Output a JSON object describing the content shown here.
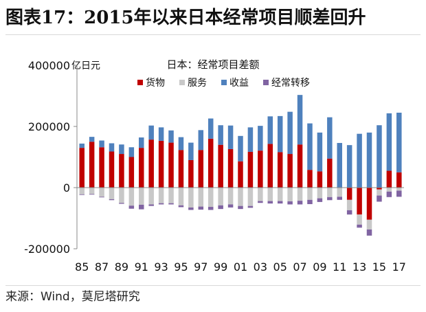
{
  "figure": {
    "title": "图表17：2015年以来日本经常项目顺差回升",
    "source": "来源：Wind，莫尼塔研究"
  },
  "chart_data": {
    "type": "bar",
    "stacked": true,
    "title": "日本：经常项目差额",
    "ylabel": "亿日元",
    "xlabel": "",
    "ylim": [
      -200000,
      400000
    ],
    "yticks": [
      400000,
      200000,
      0,
      -200000
    ],
    "ytick_labels": [
      "400000",
      "200000",
      "0",
      "-200000"
    ],
    "grid": false,
    "legend_position": "top",
    "categories": [
      "85",
      "86",
      "87",
      "88",
      "89",
      "90",
      "91",
      "92",
      "93",
      "94",
      "95",
      "96",
      "97",
      "98",
      "99",
      "00",
      "01",
      "02",
      "03",
      "04",
      "05",
      "06",
      "07",
      "08",
      "09",
      "10",
      "11",
      "12",
      "13",
      "14",
      "15",
      "16",
      "17"
    ],
    "xtick_labels": [
      "85",
      "",
      "87",
      "",
      "89",
      "",
      "91",
      "",
      "93",
      "",
      "95",
      "",
      "97",
      "",
      "99",
      "",
      "01",
      "",
      "03",
      "",
      "05",
      "",
      "07",
      "",
      "09",
      "",
      "11",
      "",
      "13",
      "",
      "15",
      "",
      "17"
    ],
    "series": [
      {
        "name": "货物",
        "color": "#c00000",
        "values": [
          130000,
          150000,
          132000,
          118000,
          110000,
          100000,
          130000,
          157000,
          153000,
          147000,
          123000,
          90000,
          123000,
          160000,
          140000,
          126000,
          86000,
          117000,
          121000,
          143000,
          116000,
          110000,
          141000,
          58000,
          53000,
          95000,
          0,
          -40000,
          -88000,
          -105000,
          -6000,
          55000,
          50000
        ]
      },
      {
        "name": "服务",
        "color": "#c8c8c8",
        "values": [
          -22000,
          -21000,
          -30000,
          -38000,
          -50000,
          -59000,
          -56000,
          -55000,
          -51000,
          -51000,
          -58000,
          -65000,
          -62000,
          -63000,
          -58000,
          -55000,
          -60000,
          -60000,
          -44000,
          -44000,
          -44000,
          -45000,
          -43000,
          -40000,
          -35000,
          -31000,
          -30000,
          -34000,
          -33000,
          -32000,
          -20000,
          -13000,
          -10000
        ]
      },
      {
        "name": "收益",
        "color": "#4f81bd",
        "values": [
          14000,
          16000,
          22000,
          27000,
          31000,
          32000,
          34000,
          46000,
          44000,
          40000,
          42000,
          57000,
          65000,
          66000,
          64000,
          77000,
          83000,
          80000,
          81000,
          90000,
          118000,
          138000,
          162000,
          152000,
          127000,
          135000,
          146000,
          139000,
          176000,
          180000,
          204000,
          188000,
          195000
        ]
      },
      {
        "name": "经常转移",
        "color": "#8064a2",
        "values": [
          -2000,
          -2000,
          -2000,
          -3000,
          -3000,
          -10000,
          -15000,
          -5000,
          -4000,
          -4000,
          -6000,
          -8000,
          -10000,
          -10000,
          -12000,
          -10000,
          -10000,
          -6000,
          -6000,
          -8000,
          -8000,
          -10000,
          -12000,
          -14000,
          -12000,
          -10000,
          -10000,
          -14000,
          -10000,
          -20000,
          -20000,
          -18000,
          -20000
        ]
      }
    ]
  }
}
